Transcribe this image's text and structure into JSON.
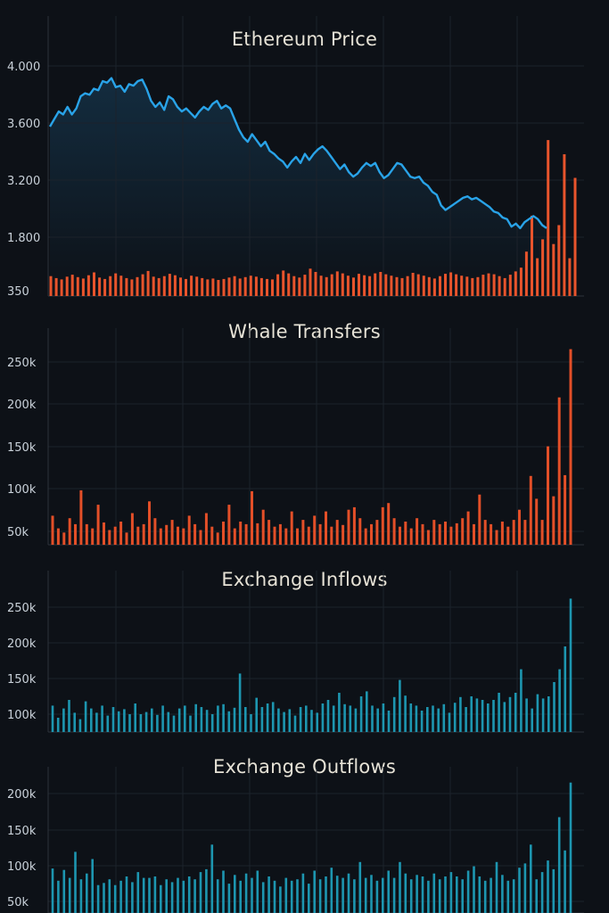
{
  "colors": {
    "background": "#0d1117",
    "grid": "#1c222b",
    "axis": "#2d333b",
    "price_line": "#29a3e8",
    "volume_bar": "#e8542c",
    "whale_bar": "#e34f28",
    "exchange_bar": "#1d96b0"
  },
  "chart_data": [
    {
      "type": "line",
      "title": "Ethereum Price",
      "xlabel": "",
      "ylabel": "",
      "y_tick_labels": [
        "4.000",
        "3.600",
        "3.200",
        "1.800",
        "350"
      ],
      "grid": true,
      "series": [
        {
          "type": "line",
          "values": [
            3600,
            3650,
            3700,
            3680,
            3730,
            3680,
            3720,
            3800,
            3820,
            3810,
            3850,
            3840,
            3900,
            3890,
            3920,
            3860,
            3870,
            3830,
            3880,
            3870,
            3900,
            3910,
            3850,
            3770,
            3730,
            3760,
            3710,
            3800,
            3780,
            3730,
            3700,
            3720,
            3690,
            3660,
            3700,
            3730,
            3710,
            3750,
            3770,
            3720,
            3740,
            3720,
            3650,
            3580,
            3530,
            3500,
            3550,
            3510,
            3470,
            3500,
            3440,
            3420,
            3390,
            3370,
            3330,
            3370,
            3400,
            3360,
            3420,
            3380,
            3420,
            3450,
            3470,
            3440,
            3400,
            3360,
            3320,
            3350,
            3300,
            3270,
            3290,
            3330,
            3360,
            3340,
            3360,
            3300,
            3260,
            3280,
            3320,
            3360,
            3350,
            3310,
            3270,
            3260,
            3270,
            3230,
            3210,
            3170,
            3150,
            3080,
            3050,
            3070,
            3090,
            3110,
            3130,
            3140,
            3120,
            3130,
            3110,
            3090,
            3070,
            3040,
            3030,
            3000,
            2990,
            2940,
            2960,
            2930,
            2970,
            2990,
            3010,
            2990,
            2950,
            2930
          ]
        },
        {
          "type": "bar",
          "values": [
            420,
            380,
            350,
            410,
            450,
            400,
            370,
            440,
            500,
            390,
            360,
            420,
            480,
            430,
            380,
            350,
            400,
            460,
            530,
            410,
            380,
            420,
            470,
            440,
            390,
            360,
            430,
            410,
            380,
            350,
            370,
            340,
            360,
            390,
            420,
            370,
            400,
            430,
            410,
            380,
            360,
            350,
            460,
            540,
            480,
            420,
            390,
            450,
            580,
            510,
            430,
            400,
            460,
            520,
            480,
            430,
            390,
            470,
            440,
            420,
            480,
            510,
            460,
            430,
            400,
            380,
            420,
            490,
            460,
            430,
            400,
            370,
            420,
            470,
            500,
            460,
            430,
            410,
            380,
            400,
            450,
            480,
            460,
            420,
            380,
            450,
            520,
            600,
            940,
            1700,
            800,
            1200,
            3300,
            1100,
            1500,
            3000,
            800,
            2500
          ]
        }
      ]
    },
    {
      "type": "bar",
      "title": "Whale Transfers",
      "xlabel": "",
      "ylabel": "",
      "y_tick_labels": [
        "250k",
        "200k",
        "150k",
        "100k",
        "50k"
      ],
      "ylim": [
        34000,
        265000
      ],
      "grid": true,
      "values": [
        65000,
        50000,
        45000,
        62000,
        55000,
        95000,
        55000,
        50000,
        78000,
        57000,
        48000,
        52000,
        58000,
        45000,
        68000,
        52000,
        55000,
        82000,
        62000,
        50000,
        54000,
        60000,
        52000,
        50000,
        65000,
        55000,
        48000,
        68000,
        52000,
        45000,
        58000,
        78000,
        50000,
        58000,
        55000,
        94000,
        56000,
        72000,
        60000,
        52000,
        55000,
        50000,
        70000,
        50000,
        60000,
        52000,
        65000,
        55000,
        70000,
        52000,
        60000,
        54000,
        72000,
        75000,
        62000,
        50000,
        55000,
        60000,
        75000,
        80000,
        62000,
        52000,
        58000,
        50000,
        62000,
        55000,
        48000,
        60000,
        55000,
        58000,
        52000,
        56000,
        62000,
        70000,
        55000,
        90000,
        60000,
        55000,
        48000,
        58000,
        52000,
        60000,
        72000,
        60000,
        112000,
        85000,
        60000,
        147000,
        88000,
        205000,
        113000,
        262000
      ]
    },
    {
      "type": "bar",
      "title": "Exchange Inflows",
      "xlabel": "",
      "ylabel": "",
      "y_tick_labels": [
        "250k",
        "200k",
        "150k",
        "100k"
      ],
      "ylim": [
        76000,
        262000
      ],
      "grid": true,
      "values": [
        112000,
        95000,
        108000,
        120000,
        102000,
        93000,
        118000,
        108000,
        102000,
        112000,
        98000,
        110000,
        104000,
        107000,
        100000,
        115000,
        100000,
        103000,
        108000,
        99000,
        112000,
        103000,
        98000,
        108000,
        112000,
        98000,
        114000,
        110000,
        106000,
        100000,
        112000,
        114000,
        104000,
        109000,
        157000,
        110000,
        100000,
        123000,
        110000,
        115000,
        117000,
        108000,
        103000,
        107000,
        98000,
        110000,
        112000,
        106000,
        102000,
        115000,
        120000,
        112000,
        130000,
        114000,
        112000,
        108000,
        125000,
        132000,
        112000,
        108000,
        115000,
        105000,
        124000,
        148000,
        126000,
        115000,
        112000,
        105000,
        110000,
        112000,
        108000,
        114000,
        102000,
        116000,
        124000,
        110000,
        125000,
        122000,
        120000,
        115000,
        120000,
        130000,
        117000,
        124000,
        130000,
        163000,
        122000,
        108000,
        128000,
        122000,
        125000,
        145000,
        163000,
        195000,
        262000
      ]
    },
    {
      "type": "bar",
      "title": "Exchange Outflows",
      "xlabel": "",
      "ylabel": "",
      "y_tick_labels": [
        "200k",
        "150k",
        "100k",
        "50k"
      ],
      "ylim": [
        37000,
        218000
      ],
      "grid": true,
      "values": [
        95000,
        78000,
        93000,
        82000,
        118000,
        80000,
        88000,
        108000,
        72000,
        75000,
        80000,
        72000,
        78000,
        84000,
        76000,
        90000,
        82000,
        82000,
        84000,
        72000,
        80000,
        76000,
        82000,
        78000,
        84000,
        80000,
        90000,
        94000,
        128000,
        80000,
        92000,
        74000,
        86000,
        78000,
        88000,
        82000,
        92000,
        76000,
        84000,
        78000,
        70000,
        82000,
        78000,
        80000,
        88000,
        74000,
        92000,
        80000,
        84000,
        96000,
        85000,
        82000,
        88000,
        80000,
        104000,
        82000,
        86000,
        78000,
        82000,
        92000,
        82000,
        104000,
        88000,
        80000,
        86000,
        84000,
        78000,
        88000,
        80000,
        84000,
        90000,
        84000,
        80000,
        92000,
        98000,
        84000,
        78000,
        82000,
        104000,
        86000,
        78000,
        80000,
        96000,
        102000,
        128000,
        80000,
        90000,
        106000,
        94000,
        166000,
        120000,
        214000
      ]
    }
  ]
}
